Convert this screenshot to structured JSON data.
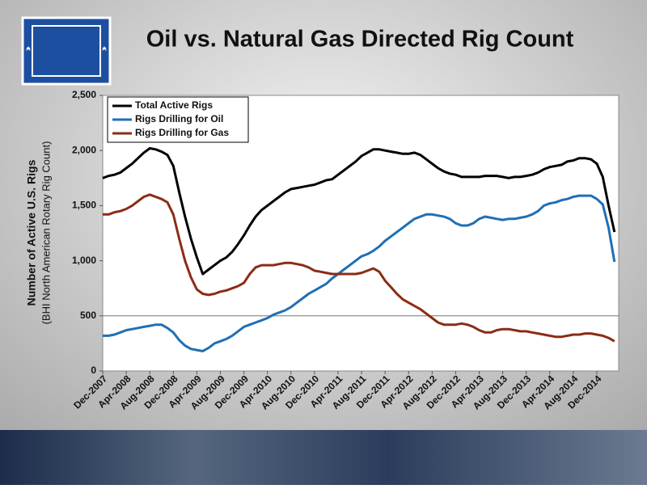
{
  "chart_data": {
    "type": "line",
    "title": "Oil vs. Natural Gas Directed Rig Count",
    "y_label": "Number of Active U.S. Rigs",
    "y_label_sub": "(BHI North American Rotary Rig Count)",
    "categories": [
      "Dec-2007",
      null,
      null,
      null,
      "Apr-2008",
      null,
      null,
      null,
      "Aug-2008",
      null,
      null,
      null,
      "Dec-2008",
      null,
      null,
      null,
      "Apr-2009",
      null,
      null,
      null,
      "Aug-2009",
      null,
      null,
      null,
      "Dec-2009",
      null,
      null,
      null,
      "Apr-2010",
      null,
      null,
      null,
      "Aug-2010",
      null,
      null,
      null,
      "Dec-2010",
      null,
      null,
      null,
      "Apr-2011",
      null,
      null,
      null,
      "Aug-2011",
      null,
      null,
      null,
      "Dec-2011",
      null,
      null,
      null,
      "Apr-2012",
      null,
      null,
      null,
      "Aug-2012",
      null,
      null,
      null,
      "Dec-2012",
      null,
      null,
      null,
      "Apr-2013",
      null,
      null,
      null,
      "Aug-2013",
      null,
      null,
      null,
      "Dec-2013",
      null,
      null,
      null,
      "Apr-2014",
      null,
      null,
      null,
      "Aug-2014",
      null,
      null,
      null,
      "Dec-2014",
      null,
      null,
      null
    ],
    "series": [
      {
        "name": "Total Active Rigs",
        "color": "#000000",
        "values": [
          1750,
          1770,
          1780,
          1800,
          1840,
          1880,
          1930,
          1980,
          2020,
          2010,
          1990,
          1960,
          1860,
          1620,
          1400,
          1200,
          1030,
          880,
          920,
          960,
          1000,
          1030,
          1080,
          1150,
          1230,
          1320,
          1400,
          1460,
          1500,
          1540,
          1580,
          1620,
          1650,
          1660,
          1670,
          1680,
          1690,
          1710,
          1730,
          1740,
          1780,
          1820,
          1860,
          1900,
          1950,
          1980,
          2010,
          2010,
          2000,
          1990,
          1980,
          1970,
          1970,
          1980,
          1960,
          1920,
          1880,
          1840,
          1810,
          1790,
          1780,
          1760,
          1760,
          1760,
          1760,
          1770,
          1770,
          1770,
          1760,
          1750,
          1760,
          1760,
          1770,
          1780,
          1800,
          1830,
          1850,
          1860,
          1870,
          1900,
          1910,
          1930,
          1930,
          1920,
          1880,
          1760,
          1500,
          1260
        ]
      },
      {
        "name": "Rigs Drilling for Oil",
        "color": "#1f6fb5",
        "values": [
          320,
          320,
          330,
          350,
          370,
          380,
          390,
          400,
          410,
          420,
          420,
          390,
          350,
          280,
          230,
          200,
          190,
          180,
          210,
          250,
          270,
          290,
          320,
          360,
          400,
          420,
          440,
          460,
          480,
          510,
          530,
          550,
          580,
          620,
          660,
          700,
          730,
          760,
          790,
          840,
          880,
          920,
          960,
          1000,
          1040,
          1060,
          1090,
          1130,
          1180,
          1220,
          1260,
          1300,
          1340,
          1380,
          1400,
          1420,
          1420,
          1410,
          1400,
          1380,
          1340,
          1320,
          1320,
          1340,
          1380,
          1400,
          1390,
          1380,
          1370,
          1380,
          1380,
          1390,
          1400,
          1420,
          1450,
          1500,
          1520,
          1530,
          1550,
          1560,
          1580,
          1590,
          1590,
          1590,
          1560,
          1510,
          1300,
          990
        ]
      },
      {
        "name": "Rigs Drilling for Gas",
        "color": "#8b2c14",
        "values": [
          1420,
          1420,
          1440,
          1450,
          1470,
          1500,
          1540,
          1580,
          1600,
          1580,
          1560,
          1530,
          1420,
          1200,
          1000,
          850,
          740,
          700,
          690,
          700,
          720,
          730,
          750,
          770,
          800,
          880,
          940,
          960,
          960,
          960,
          970,
          980,
          980,
          970,
          960,
          940,
          910,
          900,
          890,
          880,
          880,
          880,
          880,
          880,
          890,
          910,
          930,
          900,
          820,
          760,
          700,
          650,
          620,
          590,
          560,
          520,
          480,
          440,
          420,
          420,
          420,
          430,
          420,
          400,
          370,
          350,
          350,
          370,
          380,
          380,
          370,
          360,
          360,
          350,
          340,
          330,
          320,
          310,
          310,
          320,
          330,
          330,
          340,
          340,
          330,
          320,
          300,
          270
        ]
      }
    ],
    "ylim": [
      0,
      2500
    ],
    "yticks": [
      0,
      {
        "value": 500,
        "label": "500"
      },
      {
        "value": 1000,
        "label": "1,000"
      },
      {
        "value": 1500,
        "label": "1,500"
      },
      {
        "value": 2000,
        "label": "2,000"
      },
      {
        "value": 2500,
        "label": "2,500"
      }
    ],
    "reference_line": 500,
    "legend": "upper left"
  }
}
